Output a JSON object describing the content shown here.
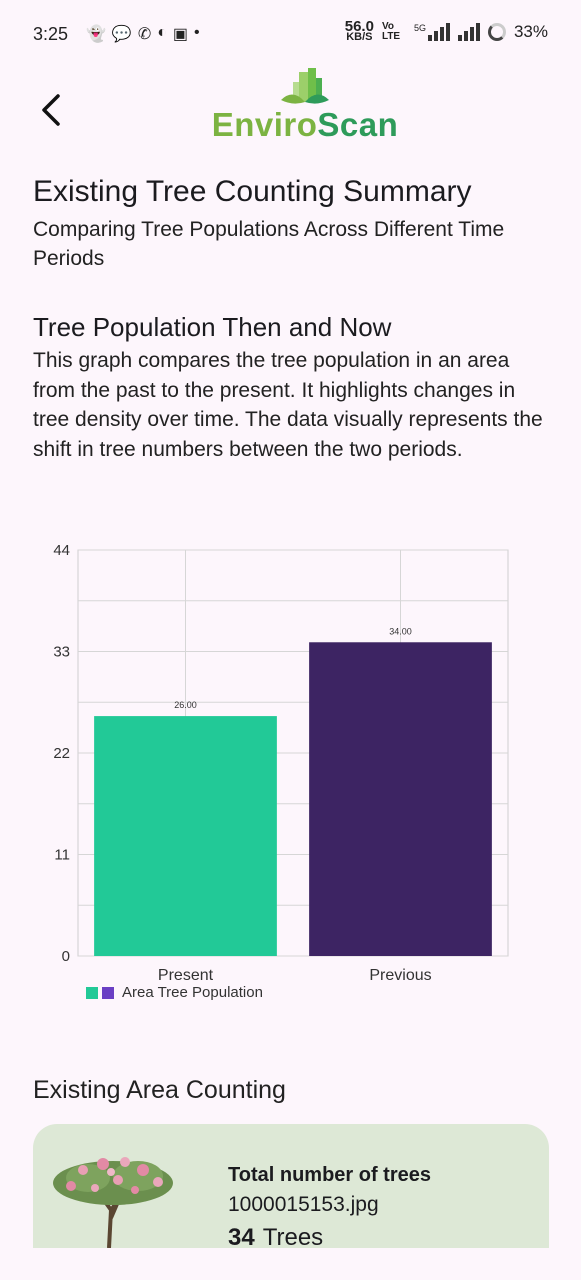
{
  "status_bar": {
    "time": "3:25",
    "speed_value": "56.0",
    "speed_unit": "KB/S",
    "volte": "Vo LTE",
    "network": "5G",
    "battery": "33%"
  },
  "app": {
    "logo_part1": "Enviro",
    "logo_part2": "Scan"
  },
  "header": {
    "title": "Existing Tree Counting Summary",
    "subtitle": "Comparing Tree Populations Across Different Time Periods"
  },
  "section": {
    "title": "Tree Population Then and Now",
    "description": "This graph compares the tree population in an area from the past to the present. It highlights changes in tree density over time. The data visually represents the shift in tree numbers between the two periods."
  },
  "chart_data": {
    "type": "bar",
    "categories": [
      "Present",
      "Previous"
    ],
    "values": [
      26,
      34
    ],
    "value_labels": [
      "26.00",
      "34.00"
    ],
    "colors": [
      "#22c997",
      "#3d2463"
    ],
    "ylim": [
      0,
      44
    ],
    "yticks": [
      0,
      11,
      22,
      33,
      44
    ],
    "grid": true,
    "legend": {
      "label": "Area Tree Population",
      "placement": "bottom-left",
      "colors": [
        "#22c997",
        "#6a3fc4"
      ]
    }
  },
  "area": {
    "title": "Existing Area Counting",
    "card": {
      "heading": "Total number of trees",
      "file_name": "1000015153.jpg",
      "count": "34",
      "count_unit": "Trees"
    }
  }
}
